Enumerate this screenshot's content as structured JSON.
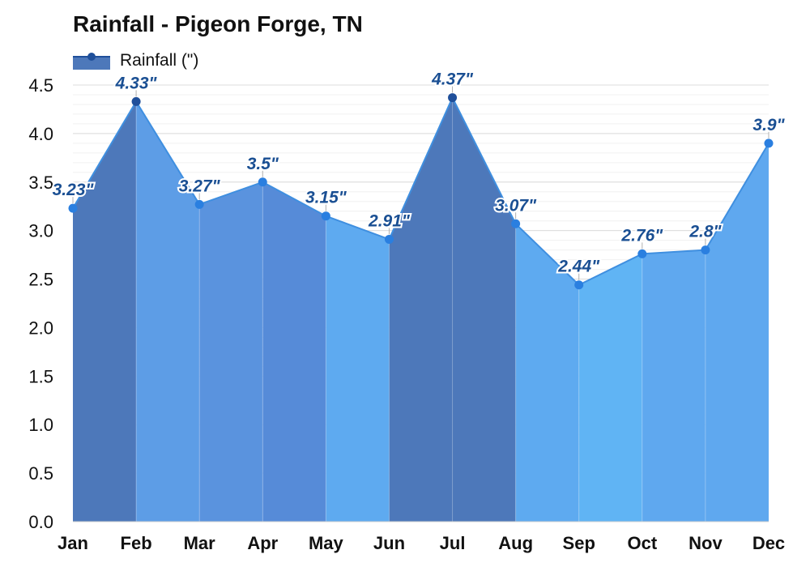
{
  "chart_data": {
    "type": "area",
    "title": "Rainfall - Pigeon Forge, TN",
    "legend": {
      "label": "Rainfall (\")",
      "position": "top-left"
    },
    "categories": [
      "Jan",
      "Feb",
      "Mar",
      "Apr",
      "May",
      "Jun",
      "Jul",
      "Aug",
      "Sep",
      "Oct",
      "Nov",
      "Dec"
    ],
    "series": [
      {
        "name": "Rainfall (\")",
        "values": [
          3.23,
          4.33,
          3.27,
          3.5,
          3.15,
          2.91,
          4.37,
          3.07,
          2.44,
          2.76,
          2.8,
          3.9
        ]
      }
    ],
    "data_labels": [
      "3.23\"",
      "4.33\"",
      "3.27\"",
      "3.5\"",
      "3.15\"",
      "2.91\"",
      "4.37\"",
      "3.07\"",
      "2.44\"",
      "2.76\"",
      "2.8\"",
      "3.9\""
    ],
    "ylim": [
      0,
      4.5
    ],
    "yticks": [
      "0.0",
      "0.5",
      "1.0",
      "1.5",
      "2.0",
      "2.5",
      "3.0",
      "3.5",
      "4.0",
      "4.5"
    ],
    "grid": true,
    "segment_colors": [
      "#4d78ba",
      "#5d9de6",
      "#5a93de",
      "#568bd8",
      "#5eaaf0",
      "#4d78ba",
      "#4d78ba",
      "#5eaaf0",
      "#60b4f4",
      "#5fa8ef",
      "#5fa8ef",
      "#5a93de"
    ],
    "line_color": "#3f8fe0",
    "marker_color": "#2a7fe0"
  }
}
